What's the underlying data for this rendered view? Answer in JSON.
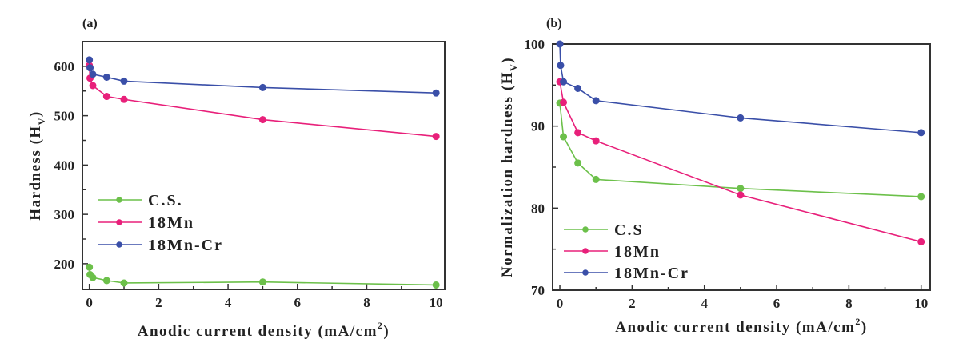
{
  "chart_data": [
    {
      "type": "line",
      "panel_label": "(a)",
      "title": "",
      "xlabel": "Anodic current density (mA/cm",
      "xlabel_sup": "2",
      "xlabel_tail": ")",
      "ylabel": "Hardness (H",
      "ylabel_sub": "V",
      "ylabel_tail": ")",
      "xlim": [
        -0.2,
        10.25
      ],
      "ylim": [
        148,
        650
      ],
      "xticks": [
        0,
        2,
        4,
        6,
        8,
        10
      ],
      "xticks_minor": [
        1,
        3,
        5,
        7,
        9
      ],
      "yticks": [
        200,
        300,
        400,
        500,
        600
      ],
      "yticks_minor": [
        250,
        350,
        450,
        550
      ],
      "grid": false,
      "legend": "bottom-left",
      "series": [
        {
          "name": "C.S.",
          "color": "#6cc04a",
          "x": [
            0,
            0.02,
            0.1,
            0.5,
            1,
            5,
            10
          ],
          "y": [
            193,
            178,
            172,
            166,
            161,
            163,
            157
          ]
        },
        {
          "name": "18Mn",
          "color": "#e8207a",
          "x": [
            0,
            0.02,
            0.1,
            0.5,
            1,
            5,
            10
          ],
          "y": [
            602,
            576,
            561,
            539,
            533,
            492,
            458
          ]
        },
        {
          "name": "18Mn-Cr",
          "color": "#3a4fa8",
          "x": [
            0,
            0.02,
            0.1,
            0.5,
            1,
            5,
            10
          ],
          "y": [
            613,
            597,
            584,
            578,
            570,
            557,
            546
          ]
        }
      ]
    },
    {
      "type": "line",
      "panel_label": "(b)",
      "title": "",
      "xlabel": "Anodic current density (mA/cm",
      "xlabel_sup": "2",
      "xlabel_tail": ")",
      "ylabel": "Normalization hardness (H",
      "ylabel_sub": "V",
      "ylabel_tail": ")",
      "xlim": [
        -0.2,
        10.25
      ],
      "ylim": [
        70,
        100
      ],
      "xticks": [
        0,
        2,
        4,
        6,
        8,
        10
      ],
      "xticks_minor": [
        1,
        3,
        5,
        7,
        9
      ],
      "yticks": [
        70,
        80,
        90,
        100
      ],
      "yticks_minor": [
        75,
        85,
        95
      ],
      "grid": false,
      "legend": "bottom-left",
      "series": [
        {
          "name": "C.S",
          "color": "#6cc04a",
          "x": [
            0,
            0.1,
            0.5,
            1,
            5,
            10
          ],
          "y": [
            92.8,
            88.7,
            85.5,
            83.5,
            82.4,
            81.4
          ]
        },
        {
          "name": "18Mn",
          "color": "#e8207a",
          "x": [
            0,
            0.1,
            0.5,
            1,
            5,
            10
          ],
          "y": [
            95.4,
            92.9,
            89.2,
            88.2,
            81.6,
            75.9
          ]
        },
        {
          "name": "18Mn-Cr",
          "color": "#3a4fa8",
          "x": [
            0,
            0.02,
            0.1,
            0.5,
            1,
            5,
            10
          ],
          "y": [
            100,
            97.4,
            95.4,
            94.6,
            93.1,
            91.0,
            89.2
          ]
        }
      ]
    }
  ]
}
